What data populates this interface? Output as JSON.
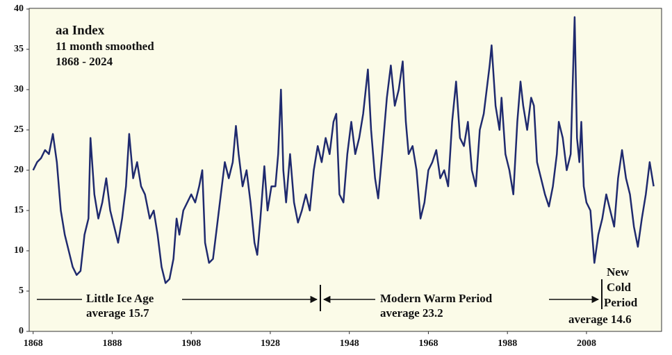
{
  "chart_data": {
    "type": "line",
    "title": "aa Index",
    "subtitle": "11 month smoothed",
    "date_range": "1868 - 2024",
    "annotations": [
      "Little Ice Age",
      "average 15.7",
      "Modern Warm Period",
      "average 23.2",
      "New",
      "Cold",
      "Period",
      "average 14.6"
    ],
    "color": "#1f2a6e",
    "xlim": [
      1867,
      2027
    ],
    "ylim": [
      0,
      40
    ],
    "xticks": [
      1868,
      1888,
      1908,
      1928,
      1948,
      1968,
      1988,
      2008
    ],
    "yticks": [
      0,
      5,
      10,
      15,
      20,
      25,
      30,
      35,
      40
    ],
    "x": [
      1868,
      1869,
      1870,
      1871,
      1872,
      1873,
      1874,
      1875,
      1876,
      1877,
      1878,
      1879,
      1880,
      1881,
      1882,
      1882.5,
      1883.5,
      1884.5,
      1885.5,
      1886.5,
      1887.5,
      1888.5,
      1889.5,
      1890.5,
      1891.5,
      1892.3,
      1893.3,
      1894.3,
      1895.3,
      1896.3,
      1897.5,
      1898.5,
      1899.5,
      1900.5,
      1901.5,
      1902.5,
      1903.5,
      1904.3,
      1905,
      1906,
      1907,
      1908,
      1909,
      1910,
      1910.8,
      1911.5,
      1912.5,
      1913.5,
      1914.5,
      1915.5,
      1916.5,
      1917.5,
      1918.5,
      1919.3,
      1920,
      1921,
      1922,
      1923,
      1924,
      1924.7,
      1925.5,
      1926.5,
      1927.3,
      1928.3,
      1929.3,
      1930,
      1930.7,
      1931.3,
      1932,
      1933,
      1934,
      1935,
      1936,
      1937,
      1938,
      1939,
      1940,
      1941,
      1942,
      1943,
      1944,
      1944.7,
      1945.5,
      1946.5,
      1947.5,
      1948.5,
      1949.5,
      1950.5,
      1951.5,
      1952.7,
      1953.5,
      1954.5,
      1955.3,
      1956.3,
      1957.5,
      1958.5,
      1959.5,
      1960.5,
      1961.5,
      1962.3,
      1963,
      1964,
      1965,
      1966,
      1967,
      1968,
      1969,
      1970,
      1971,
      1972,
      1973,
      1974,
      1975,
      1976,
      1977,
      1978,
      1979,
      1980,
      1981,
      1982,
      1983.5,
      1984,
      1985,
      1986,
      1986.5,
      1987.5,
      1988.5,
      1989.5,
      1990.5,
      1991.3,
      1992,
      1993,
      1994,
      1994.7,
      1995.5,
      1996.5,
      1997.5,
      1998.5,
      1999.5,
      2000.5,
      2001,
      2002,
      2003,
      2004,
      2005,
      2005.6,
      2006.2,
      2006.7,
      2007.3,
      2008,
      2009,
      2010,
      2011,
      2012,
      2013,
      2014,
      2015,
      2016,
      2017,
      2018,
      2019,
      2020,
      2021,
      2022,
      2023,
      2024,
      2025
    ],
    "values": [
      20,
      21,
      21.5,
      22.5,
      22,
      24.5,
      21,
      15,
      12,
      10,
      8,
      7,
      7.5,
      12,
      14,
      24,
      17,
      14,
      16,
      19,
      15,
      13,
      11,
      14,
      18,
      24.5,
      19,
      21,
      18,
      17,
      14,
      15,
      12,
      8,
      6,
      6.5,
      9,
      14,
      12,
      15,
      16,
      17,
      16,
      18,
      20,
      11,
      8.5,
      9,
      13,
      17,
      21,
      19,
      21,
      25.5,
      22,
      18,
      20,
      16,
      11,
      9.5,
      14,
      20.5,
      15,
      18,
      18,
      22,
      30,
      20,
      16,
      22,
      16,
      13.5,
      15,
      17,
      15,
      20,
      23,
      21,
      24,
      22,
      26,
      27,
      17,
      16,
      22,
      26,
      22,
      24,
      27,
      32.5,
      25,
      19,
      16.5,
      22,
      29,
      33,
      28,
      30,
      33.5,
      26,
      22,
      23,
      20,
      14,
      16,
      20,
      21,
      22.5,
      19,
      20,
      18,
      26,
      31,
      24,
      23,
      26,
      20,
      18,
      25,
      27,
      33,
      35.5,
      28,
      25,
      29,
      22,
      20,
      17,
      26,
      31,
      28,
      25,
      29,
      28,
      21,
      19,
      17,
      15.5,
      18,
      22,
      26,
      24,
      20,
      22,
      39,
      24,
      21,
      26,
      18,
      16,
      15,
      8.5,
      12,
      14,
      17,
      15,
      13,
      19,
      22.5,
      19,
      17,
      13,
      10.5,
      14,
      17,
      21,
      18
    ]
  }
}
